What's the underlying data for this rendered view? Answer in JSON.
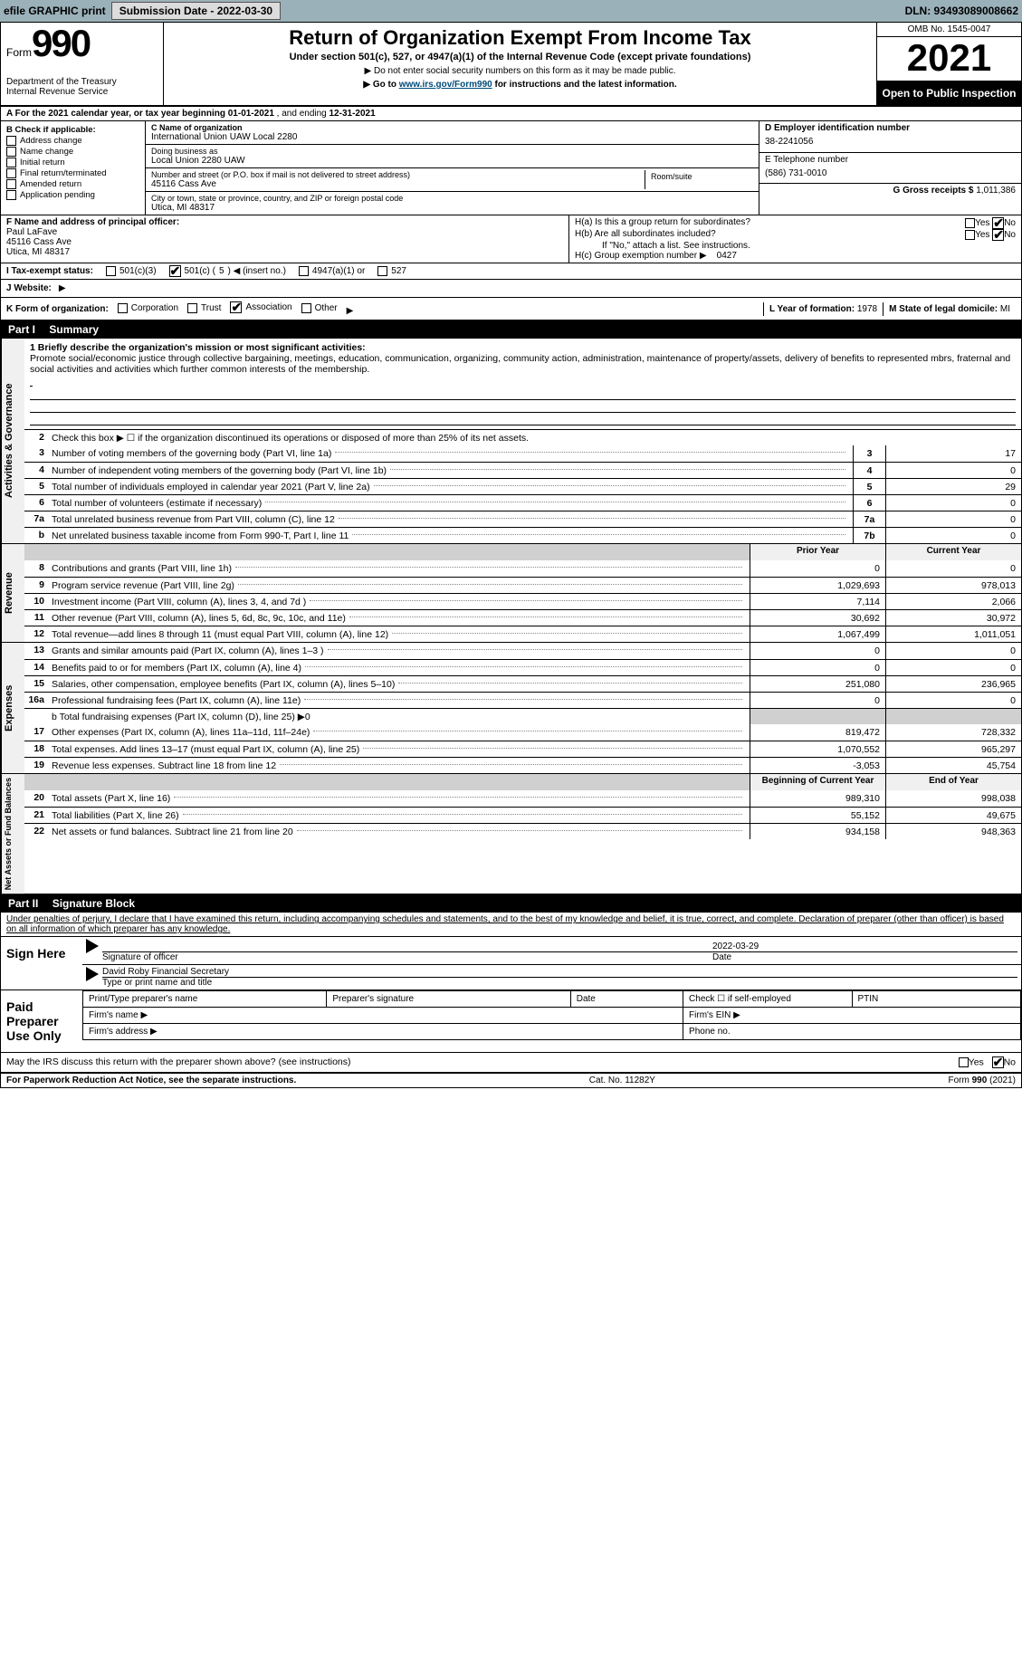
{
  "topbar": {
    "efile_label": "efile GRAPHIC print",
    "sub_date_label": "Submission Date - 2022-03-30",
    "dln_label": "DLN: 93493089008662"
  },
  "header": {
    "form_word": "Form",
    "form_num": "990",
    "title": "Return of Organization Exempt From Income Tax",
    "subtitle": "Under section 501(c), 527, or 4947(a)(1) of the Internal Revenue Code (except private foundations)",
    "note1": "▶ Do not enter social security numbers on this form as it may be made public.",
    "note2_pre": "▶ Go to ",
    "note2_link": "www.irs.gov/Form990",
    "note2_post": " for instructions and the latest information.",
    "dept": "Department of the Treasury",
    "irs": "Internal Revenue Service",
    "omb": "OMB No. 1545-0047",
    "year": "2021",
    "open_pub": "Open to Public Inspection"
  },
  "rowA": {
    "text_pre": "A For the 2021 calendar year, or tax year beginning ",
    "begin": "01-01-2021",
    "mid": "  , and ending ",
    "end": "12-31-2021"
  },
  "colB": {
    "title": "B Check if applicable:",
    "items": [
      "Address change",
      "Name change",
      "Initial return",
      "Final return/terminated",
      "Amended return",
      "Application pending"
    ]
  },
  "colC": {
    "name_label": "C Name of organization",
    "name": "International Union UAW Local 2280",
    "dba_label": "Doing business as",
    "dba": "Local Union 2280 UAW",
    "addr_label": "Number and street (or P.O. box if mail is not delivered to street address)",
    "addr": "45116 Cass Ave",
    "room_label": "Room/suite",
    "city_label": "City or town, state or province, country, and ZIP or foreign postal code",
    "city": "Utica, MI  48317"
  },
  "colD": {
    "ein_label": "D Employer identification number",
    "ein": "38-2241056",
    "phone_label": "E Telephone number",
    "phone": "(586) 731-0010",
    "gross_label": "G Gross receipts $ ",
    "gross": "1,011,386"
  },
  "rowF": {
    "label": "F Name and address of principal officer:",
    "name": "Paul LaFave",
    "addr1": "45116 Cass Ave",
    "addr2": "Utica, MI  48317"
  },
  "rowH": {
    "a_label": "H(a)  Is this a group return for subordinates?",
    "yes": "Yes",
    "no": "No",
    "b_label": "H(b)  Are all subordinates included?",
    "b_note": "If \"No,\" attach a list. See instructions.",
    "c_label": "H(c)  Group exemption number ▶",
    "c_val": "0427"
  },
  "rowI": {
    "label": "I  Tax-exempt status:",
    "opt1": "501(c)(3)",
    "opt2_pre": "501(c) ( ",
    "opt2_num": "5",
    "opt2_post": " ) ◀ (insert no.)",
    "opt3": "4947(a)(1) or",
    "opt4": "527"
  },
  "rowJ": {
    "label": "J  Website:",
    "arrow": "▶"
  },
  "rowK": {
    "label": "K Form of organization:",
    "opts": [
      "Corporation",
      "Trust",
      "Association",
      "Other"
    ],
    "checked_idx": 2,
    "arrow": "▶",
    "L_label": "L Year of formation: ",
    "L_val": "1978",
    "M_label": "M State of legal domicile: ",
    "M_val": "MI"
  },
  "part1": {
    "hdr": "Part I",
    "title": "Summary",
    "q1_label": "1  Briefly describe the organization's mission or most significant activities:",
    "q1_text": "Promote social/economic justice through collective bargaining, meetings, education, communication, organizing, community action, administration, maintenance of property/assets, delivery of benefits to represented mbrs, fraternal and social activities and activities which further common interests of the membership.",
    "q2": "Check this box ▶ ☐ if the organization discontinued its operations or disposed of more than 25% of its net assets.",
    "lines_single": [
      {
        "n": "3",
        "d": "Number of voting members of the governing body (Part VI, line 1a)",
        "box": "3",
        "v": "17"
      },
      {
        "n": "4",
        "d": "Number of independent voting members of the governing body (Part VI, line 1b)",
        "box": "4",
        "v": "0"
      },
      {
        "n": "5",
        "d": "Total number of individuals employed in calendar year 2021 (Part V, line 2a)",
        "box": "5",
        "v": "29"
      },
      {
        "n": "6",
        "d": "Total number of volunteers (estimate if necessary)",
        "box": "6",
        "v": "0"
      },
      {
        "n": "7a",
        "d": "Total unrelated business revenue from Part VIII, column (C), line 12",
        "box": "7a",
        "v": "0"
      },
      {
        "n": "b",
        "d": "Net unrelated business taxable income from Form 990-T, Part I, line 11",
        "box": "7b",
        "v": "0"
      }
    ],
    "col_hdr_prior": "Prior Year",
    "col_hdr_curr": "Current Year",
    "revenue": [
      {
        "n": "8",
        "d": "Contributions and grants (Part VIII, line 1h)",
        "p": "0",
        "c": "0"
      },
      {
        "n": "9",
        "d": "Program service revenue (Part VIII, line 2g)",
        "p": "1,029,693",
        "c": "978,013"
      },
      {
        "n": "10",
        "d": "Investment income (Part VIII, column (A), lines 3, 4, and 7d )",
        "p": "7,114",
        "c": "2,066"
      },
      {
        "n": "11",
        "d": "Other revenue (Part VIII, column (A), lines 5, 6d, 8c, 9c, 10c, and 11e)",
        "p": "30,692",
        "c": "30,972"
      },
      {
        "n": "12",
        "d": "Total revenue—add lines 8 through 11 (must equal Part VIII, column (A), line 12)",
        "p": "1,067,499",
        "c": "1,011,051"
      }
    ],
    "expenses": [
      {
        "n": "13",
        "d": "Grants and similar amounts paid (Part IX, column (A), lines 1–3 )",
        "p": "0",
        "c": "0"
      },
      {
        "n": "14",
        "d": "Benefits paid to or for members (Part IX, column (A), line 4)",
        "p": "0",
        "c": "0"
      },
      {
        "n": "15",
        "d": "Salaries, other compensation, employee benefits (Part IX, column (A), lines 5–10)",
        "p": "251,080",
        "c": "236,965"
      },
      {
        "n": "16a",
        "d": "Professional fundraising fees (Part IX, column (A), line 11e)",
        "p": "0",
        "c": "0"
      }
    ],
    "line16b": "b  Total fundraising expenses (Part IX, column (D), line 25) ▶0",
    "expenses2": [
      {
        "n": "17",
        "d": "Other expenses (Part IX, column (A), lines 11a–11d, 11f–24e)",
        "p": "819,472",
        "c": "728,332"
      },
      {
        "n": "18",
        "d": "Total expenses. Add lines 13–17 (must equal Part IX, column (A), line 25)",
        "p": "1,070,552",
        "c": "965,297"
      },
      {
        "n": "19",
        "d": "Revenue less expenses. Subtract line 18 from line 12",
        "p": "-3,053",
        "c": "45,754"
      }
    ],
    "col_hdr_begin": "Beginning of Current Year",
    "col_hdr_end": "End of Year",
    "netassets": [
      {
        "n": "20",
        "d": "Total assets (Part X, line 16)",
        "p": "989,310",
        "c": "998,038"
      },
      {
        "n": "21",
        "d": "Total liabilities (Part X, line 26)",
        "p": "55,152",
        "c": "49,675"
      },
      {
        "n": "22",
        "d": "Net assets or fund balances. Subtract line 21 from line 20",
        "p": "934,158",
        "c": "948,363"
      }
    ],
    "vtabs": {
      "gov": "Activities & Governance",
      "rev": "Revenue",
      "exp": "Expenses",
      "net": "Net Assets or Fund Balances"
    }
  },
  "part2": {
    "hdr": "Part II",
    "title": "Signature Block",
    "penalty": "Under penalties of perjury, I declare that I have examined this return, including accompanying schedules and statements, and to the best of my knowledge and belief, it is true, correct, and complete. Declaration of preparer (other than officer) is based on all information of which preparer has any knowledge.",
    "sign_here": "Sign Here",
    "sig_officer": "Signature of officer",
    "sig_date": "Date",
    "sig_date_val": "2022-03-29",
    "sig_name": "David Roby  Financial Secretary",
    "sig_name_label": "Type or print name and title",
    "paid_prep": "Paid Preparer Use Only",
    "prep_name": "Print/Type preparer's name",
    "prep_sig": "Preparer's signature",
    "prep_date": "Date",
    "prep_check": "Check ☐ if self-employed",
    "prep_ptin": "PTIN",
    "firm_name": "Firm's name   ▶",
    "firm_ein": "Firm's EIN ▶",
    "firm_addr": "Firm's address ▶",
    "firm_phone": "Phone no.",
    "may_irs": "May the IRS discuss this return with the preparer shown above? (see instructions)",
    "yes": "Yes",
    "no": "No"
  },
  "footer": {
    "pra": "For Paperwork Reduction Act Notice, see the separate instructions.",
    "cat": "Cat. No. 11282Y",
    "form": "Form 990 (2021)"
  }
}
